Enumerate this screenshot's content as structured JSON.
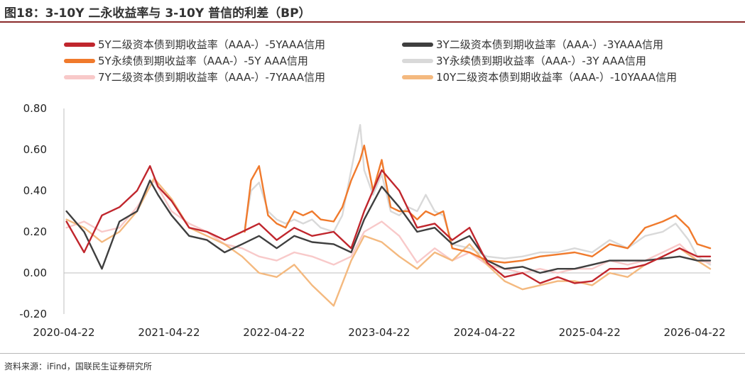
{
  "figure": {
    "title": "图18：3-10Y 二永收益率与 3-10Y 普信的利差（BP）",
    "source": "资料来源：iFind，国联民生证券研究所"
  },
  "chart_data": {
    "type": "line",
    "title": "图18：3-10Y 二永收益率与 3-10Y 普信的利差（BP）",
    "xlabel": "",
    "ylabel": "",
    "x_range": [
      "2020-04-22",
      "2026-06-15"
    ],
    "ylim": [
      -0.2,
      0.8
    ],
    "y_ticks": [
      0.8,
      0.6,
      0.4,
      0.2,
      0.0,
      -0.2
    ],
    "y_tick_labels": [
      "0.80",
      "0.60",
      "0.40",
      "0.20",
      "0.00",
      "-0.20"
    ],
    "x_ticks": [
      "2020-04-22",
      "2021-04-22",
      "2022-04-22",
      "2023-04-22",
      "2024-04-22",
      "2025-04-22",
      "2026-04-22"
    ],
    "grid": false,
    "legend_position": "top",
    "series": [
      {
        "name": "5Y二级资本债到期收益率（AAA-）-5YAAA信用",
        "color": "#c0262d",
        "x": [
          "2020-05-01",
          "2020-07-01",
          "2020-09-01",
          "2020-11-01",
          "2021-01-01",
          "2021-02-15",
          "2021-03-15",
          "2021-05-01",
          "2021-07-01",
          "2021-09-01",
          "2021-11-01",
          "2022-01-01",
          "2022-03-01",
          "2022-05-01",
          "2022-07-01",
          "2022-09-01",
          "2022-11-15",
          "2023-01-15",
          "2023-03-01",
          "2023-05-01",
          "2023-07-01",
          "2023-09-01",
          "2023-11-01",
          "2024-01-01",
          "2024-03-01",
          "2024-05-01",
          "2024-07-01",
          "2024-09-01",
          "2024-11-01",
          "2025-01-01",
          "2025-03-01",
          "2025-05-01",
          "2025-07-01",
          "2025-09-01",
          "2025-11-01",
          "2026-01-01",
          "2026-03-01",
          "2026-05-01",
          "2026-06-15"
        ],
        "values": [
          0.25,
          0.1,
          0.28,
          0.32,
          0.4,
          0.52,
          0.42,
          0.35,
          0.22,
          0.2,
          0.16,
          0.2,
          0.24,
          0.16,
          0.22,
          0.18,
          0.2,
          0.12,
          0.3,
          0.5,
          0.4,
          0.22,
          0.24,
          0.16,
          0.22,
          0.05,
          -0.02,
          0.0,
          -0.05,
          -0.02,
          -0.05,
          -0.04,
          0.02,
          0.02,
          0.04,
          0.08,
          0.12,
          0.08,
          0.08
        ]
      },
      {
        "name": "3Y二级资本债到期收益率（AAA-）-3YAAA信用",
        "color": "#3f3f3f",
        "x": [
          "2020-05-01",
          "2020-07-01",
          "2020-09-01",
          "2020-11-01",
          "2021-01-01",
          "2021-02-15",
          "2021-03-15",
          "2021-05-01",
          "2021-07-01",
          "2021-09-01",
          "2021-11-01",
          "2022-01-01",
          "2022-03-01",
          "2022-05-01",
          "2022-07-01",
          "2022-09-01",
          "2022-11-15",
          "2023-01-15",
          "2023-03-01",
          "2023-05-01",
          "2023-07-01",
          "2023-09-01",
          "2023-11-01",
          "2024-01-01",
          "2024-03-01",
          "2024-05-01",
          "2024-07-01",
          "2024-09-01",
          "2024-11-01",
          "2025-01-01",
          "2025-03-01",
          "2025-05-01",
          "2025-07-01",
          "2025-09-01",
          "2025-11-01",
          "2026-01-01",
          "2026-03-01",
          "2026-05-01",
          "2026-06-15"
        ],
        "values": [
          0.3,
          0.2,
          0.02,
          0.25,
          0.3,
          0.45,
          0.38,
          0.28,
          0.18,
          0.16,
          0.1,
          0.14,
          0.18,
          0.12,
          0.18,
          0.15,
          0.14,
          0.1,
          0.26,
          0.42,
          0.32,
          0.2,
          0.22,
          0.14,
          0.18,
          0.06,
          0.02,
          0.03,
          0.0,
          0.02,
          0.02,
          0.04,
          0.06,
          0.06,
          0.06,
          0.07,
          0.08,
          0.06,
          0.06
        ]
      },
      {
        "name": "5Y永续债到期收益率（AAA-）-5Y AAA信用",
        "color": "#f07a2c",
        "x": [
          "2022-01-10",
          "2022-02-01",
          "2022-03-01",
          "2022-04-01",
          "2022-05-01",
          "2022-06-01",
          "2022-07-01",
          "2022-08-01",
          "2022-09-01",
          "2022-10-01",
          "2022-11-15",
          "2022-12-15",
          "2023-01-15",
          "2023-02-15",
          "2023-03-01",
          "2023-04-01",
          "2023-05-01",
          "2023-06-01",
          "2023-07-01",
          "2023-08-01",
          "2023-09-01",
          "2023-10-01",
          "2023-11-01",
          "2023-12-01",
          "2024-01-01",
          "2024-03-01",
          "2024-05-01",
          "2024-07-01",
          "2024-09-01",
          "2024-11-01",
          "2025-01-01",
          "2025-03-01",
          "2025-05-01",
          "2025-07-01",
          "2025-09-01",
          "2025-11-01",
          "2026-01-01",
          "2026-02-15",
          "2026-04-01",
          "2026-05-01",
          "2026-06-15"
        ],
        "values": [
          0.2,
          0.45,
          0.52,
          0.28,
          0.24,
          0.22,
          0.3,
          0.28,
          0.3,
          0.26,
          0.25,
          0.32,
          0.45,
          0.55,
          0.62,
          0.4,
          0.55,
          0.32,
          0.3,
          0.3,
          0.26,
          0.3,
          0.28,
          0.3,
          0.12,
          0.1,
          0.06,
          0.05,
          0.06,
          0.08,
          0.09,
          0.1,
          0.08,
          0.14,
          0.12,
          0.22,
          0.25,
          0.28,
          0.22,
          0.14,
          0.12
        ]
      },
      {
        "name": "3Y永续债到期收益率（AAA-）-3Y AAA信用",
        "color": "#d9d9d9",
        "x": [
          "2022-01-10",
          "2022-02-01",
          "2022-03-01",
          "2022-04-01",
          "2022-05-01",
          "2022-06-01",
          "2022-07-01",
          "2022-08-01",
          "2022-09-01",
          "2022-10-01",
          "2022-11-15",
          "2022-12-15",
          "2023-01-15",
          "2023-02-15",
          "2023-03-01",
          "2023-04-01",
          "2023-05-01",
          "2023-06-01",
          "2023-07-01",
          "2023-08-01",
          "2023-09-01",
          "2023-10-01",
          "2023-11-01",
          "2023-12-01",
          "2024-01-01",
          "2024-03-01",
          "2024-05-01",
          "2024-07-01",
          "2024-09-01",
          "2024-11-01",
          "2025-01-01",
          "2025-03-01",
          "2025-05-01",
          "2025-07-01",
          "2025-09-01",
          "2025-11-01",
          "2026-01-01",
          "2026-02-15",
          "2026-04-01",
          "2026-05-01",
          "2026-06-15"
        ],
        "values": [
          0.22,
          0.4,
          0.44,
          0.3,
          0.26,
          0.24,
          0.26,
          0.24,
          0.26,
          0.22,
          0.2,
          0.28,
          0.5,
          0.72,
          0.5,
          0.38,
          0.48,
          0.3,
          0.28,
          0.32,
          0.3,
          0.38,
          0.3,
          0.28,
          0.14,
          0.12,
          0.08,
          0.07,
          0.08,
          0.1,
          0.1,
          0.12,
          0.1,
          0.16,
          0.12,
          0.18,
          0.2,
          0.24,
          0.16,
          0.08,
          0.04
        ]
      },
      {
        "name": "7Y二级资本债到期收益率（AAA-）-7YAAA信用",
        "color": "#f8c9c9",
        "x": [
          "2020-05-01",
          "2020-07-01",
          "2020-09-01",
          "2020-11-01",
          "2021-01-01",
          "2021-03-01",
          "2021-05-01",
          "2021-07-01",
          "2021-09-01",
          "2021-11-01",
          "2022-01-01",
          "2022-03-01",
          "2022-05-01",
          "2022-07-01",
          "2022-09-01",
          "2022-11-15",
          "2023-01-15",
          "2023-03-01",
          "2023-05-01",
          "2023-07-01",
          "2023-09-01",
          "2023-11-01",
          "2024-01-01",
          "2024-03-01",
          "2024-05-01",
          "2024-07-01",
          "2024-09-01",
          "2024-11-01",
          "2025-01-01",
          "2025-03-01",
          "2025-05-01",
          "2025-07-01",
          "2025-09-01",
          "2025-11-01",
          "2026-01-01",
          "2026-03-01",
          "2026-05-01",
          "2026-06-15"
        ],
        "values": [
          0.22,
          0.25,
          0.2,
          0.22,
          0.32,
          0.45,
          0.3,
          0.24,
          0.2,
          0.14,
          0.12,
          0.08,
          0.06,
          0.1,
          0.08,
          0.04,
          0.08,
          0.2,
          0.25,
          0.18,
          0.05,
          0.12,
          0.06,
          0.1,
          0.04,
          0.02,
          0.0,
          0.02,
          0.0,
          0.02,
          0.02,
          0.06,
          0.04,
          0.06,
          0.1,
          0.14,
          0.06,
          0.05
        ]
      },
      {
        "name": "10Y二级资本债到期收益率（AAA-）-10YAAA信用",
        "color": "#f4b97f",
        "x": [
          "2020-05-01",
          "2020-07-01",
          "2020-09-01",
          "2020-11-01",
          "2021-01-01",
          "2021-03-01",
          "2021-05-01",
          "2021-07-01",
          "2021-09-01",
          "2021-11-01",
          "2022-01-01",
          "2022-03-01",
          "2022-05-01",
          "2022-07-01",
          "2022-09-01",
          "2022-11-15",
          "2023-01-15",
          "2023-03-01",
          "2023-05-01",
          "2023-07-01",
          "2023-09-01",
          "2023-11-01",
          "2024-01-01",
          "2024-03-01",
          "2024-05-01",
          "2024-07-01",
          "2024-09-01",
          "2024-11-01",
          "2025-01-01",
          "2025-03-01",
          "2025-05-01",
          "2025-07-01",
          "2025-09-01",
          "2025-11-01",
          "2026-01-01",
          "2026-03-01",
          "2026-05-01",
          "2026-06-15"
        ],
        "values": [
          0.26,
          0.22,
          0.15,
          0.2,
          0.3,
          0.46,
          0.36,
          0.22,
          0.18,
          0.14,
          0.08,
          0.0,
          -0.02,
          0.04,
          -0.06,
          -0.16,
          0.06,
          0.18,
          0.15,
          0.08,
          0.02,
          0.1,
          0.06,
          0.14,
          0.04,
          -0.04,
          -0.08,
          -0.06,
          -0.04,
          -0.04,
          -0.06,
          0.0,
          -0.02,
          0.04,
          0.08,
          0.12,
          0.06,
          0.02
        ]
      }
    ]
  }
}
